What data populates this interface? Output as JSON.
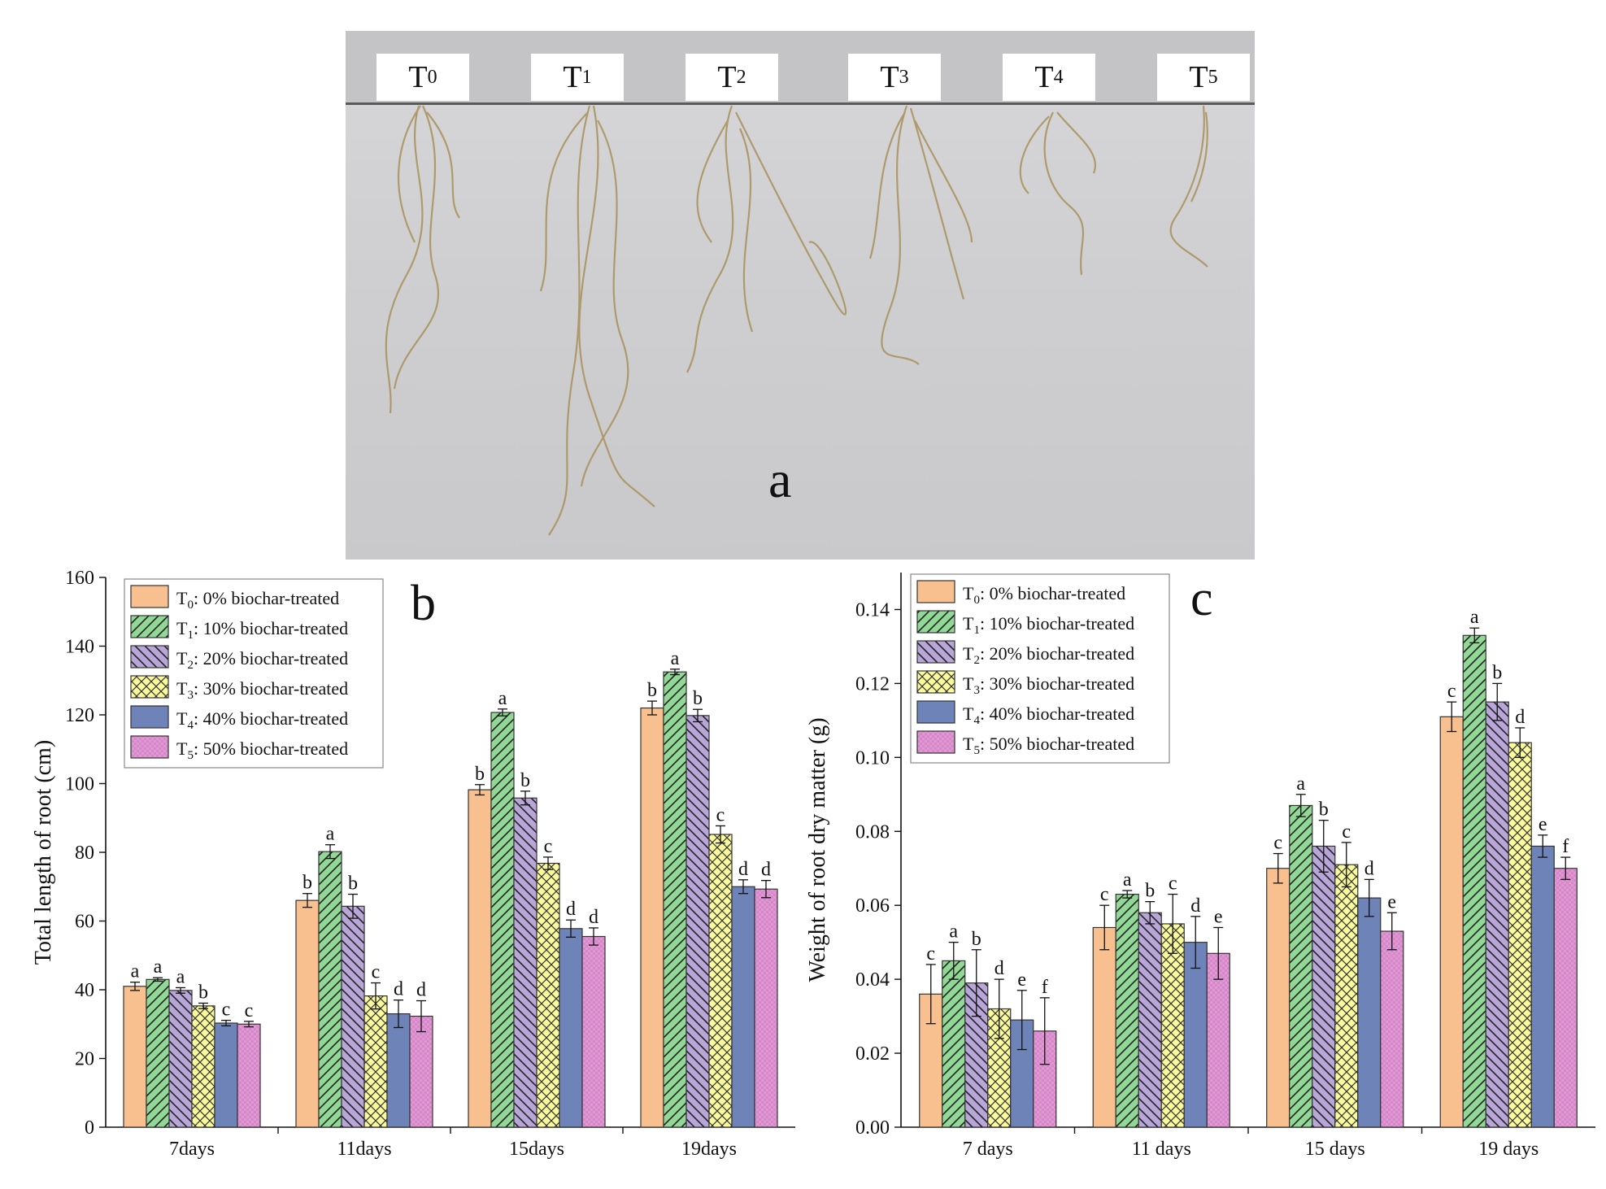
{
  "photo": {
    "labels": [
      {
        "base": "T",
        "sub": "0"
      },
      {
        "base": "T",
        "sub": "1"
      },
      {
        "base": "T",
        "sub": "2"
      },
      {
        "base": "T",
        "sub": "3"
      },
      {
        "base": "T",
        "sub": "4"
      },
      {
        "base": "T",
        "sub": "5"
      }
    ],
    "panel_letter": "a"
  },
  "legend": [
    {
      "base": "T",
      "sub": "0",
      "text": ":   0% biochar-treated",
      "color": "#f8bf8f",
      "pattern": "solid"
    },
    {
      "base": "T",
      "sub": "1",
      "text": ": 10% biochar-treated",
      "color": "#91d795",
      "pattern": "diag-right"
    },
    {
      "base": "T",
      "sub": "2",
      "text": ": 20% biochar-treated",
      "color": "#b8a6d8",
      "pattern": "diag-left"
    },
    {
      "base": "T",
      "sub": "3",
      "text": ": 30% biochar-treated",
      "color": "#fafa9c",
      "pattern": "cross"
    },
    {
      "base": "T",
      "sub": "4",
      "text": ": 40% biochar-treated",
      "color": "#6e83b8",
      "pattern": "solid"
    },
    {
      "base": "T",
      "sub": "5",
      "text": ": 50% biochar-treated",
      "color": "#e097d4",
      "pattern": "checker"
    }
  ],
  "chart_data": [
    {
      "type": "bar",
      "panel_letter": "b",
      "categories": [
        "7days",
        "11days",
        "15days",
        "19days"
      ],
      "ylabel": "Total length of root (cm)",
      "xlabel": "",
      "ylim": [
        0,
        160
      ],
      "yticks": [
        "0",
        "20",
        "40",
        "60",
        "80",
        "100",
        "120",
        "140",
        "160"
      ],
      "legend_position": "top-left",
      "series": [
        {
          "name": "T0: 0% biochar-treated",
          "values": [
            41.0,
            66.0,
            98.2,
            122.0
          ],
          "errors": [
            1.2,
            2.0,
            1.5,
            2.0
          ],
          "letters": [
            "a",
            "b",
            "b",
            "b"
          ]
        },
        {
          "name": "T1: 10% biochar-treated",
          "values": [
            43.0,
            80.2,
            120.7,
            132.5
          ],
          "errors": [
            0.5,
            2.0,
            1.0,
            0.8
          ],
          "letters": [
            "a",
            "a",
            "a",
            "a"
          ]
        },
        {
          "name": "T2: 20% biochar-treated",
          "values": [
            39.8,
            64.3,
            95.8,
            119.8
          ],
          "errors": [
            0.8,
            3.5,
            2.0,
            1.8
          ],
          "letters": [
            "a",
            "b",
            "b",
            "b"
          ]
        },
        {
          "name": "T3: 30% biochar-treated",
          "values": [
            35.3,
            38.2,
            76.8,
            85.2
          ],
          "errors": [
            0.8,
            3.8,
            1.8,
            2.5
          ],
          "letters": [
            "b",
            "c",
            "c",
            "c"
          ]
        },
        {
          "name": "T4: 40% biochar-treated",
          "values": [
            30.3,
            33.0,
            57.8,
            70.0
          ],
          "errors": [
            0.8,
            4.0,
            2.5,
            2.0
          ],
          "letters": [
            "c",
            "d",
            "d",
            "d"
          ]
        },
        {
          "name": "T5: 50% biochar-treated",
          "values": [
            30.0,
            32.3,
            55.5,
            69.3
          ],
          "errors": [
            0.8,
            4.5,
            2.5,
            2.5
          ],
          "letters": [
            "c",
            "d",
            "d",
            "d"
          ]
        }
      ]
    },
    {
      "type": "bar",
      "panel_letter": "c",
      "categories": [
        "7 days",
        "11 days",
        "15 days",
        "19 days"
      ],
      "ylabel": "Weight of root dry matter (g)",
      "xlabel": "",
      "ylim": [
        0,
        0.15
      ],
      "yticks": [
        "0.00",
        "0.02",
        "0.04",
        "0.06",
        "0.08",
        "0.10",
        "0.12",
        "0.14"
      ],
      "legend_position": "top-left",
      "series": [
        {
          "name": "T0: 0% biochar-treated",
          "values": [
            0.036,
            0.054,
            0.07,
            0.111
          ],
          "errors": [
            0.008,
            0.006,
            0.004,
            0.004
          ],
          "letters": [
            "c",
            "c",
            "c",
            "c"
          ]
        },
        {
          "name": "T1: 10% biochar-treated",
          "values": [
            0.045,
            0.063,
            0.087,
            0.133
          ],
          "errors": [
            0.005,
            0.001,
            0.003,
            0.002
          ],
          "letters": [
            "a",
            "a",
            "a",
            "a"
          ]
        },
        {
          "name": "T2: 20% biochar-treated",
          "values": [
            0.039,
            0.058,
            0.076,
            0.115
          ],
          "errors": [
            0.009,
            0.003,
            0.007,
            0.005
          ],
          "letters": [
            "b",
            "b",
            "b",
            "b"
          ]
        },
        {
          "name": "T3: 30% biochar-treated",
          "values": [
            0.032,
            0.055,
            0.071,
            0.104
          ],
          "errors": [
            0.008,
            0.008,
            0.006,
            0.004
          ],
          "letters": [
            "d",
            "c",
            "c",
            "d"
          ]
        },
        {
          "name": "T4: 40% biochar-treated",
          "values": [
            0.029,
            0.05,
            0.062,
            0.076
          ],
          "errors": [
            0.008,
            0.007,
            0.005,
            0.003
          ],
          "letters": [
            "e",
            "d",
            "d",
            "e"
          ]
        },
        {
          "name": "T5: 50% biochar-treated",
          "values": [
            0.026,
            0.047,
            0.053,
            0.07
          ],
          "errors": [
            0.009,
            0.007,
            0.005,
            0.003
          ],
          "letters": [
            "f",
            "e",
            "e",
            "f"
          ]
        }
      ]
    }
  ]
}
